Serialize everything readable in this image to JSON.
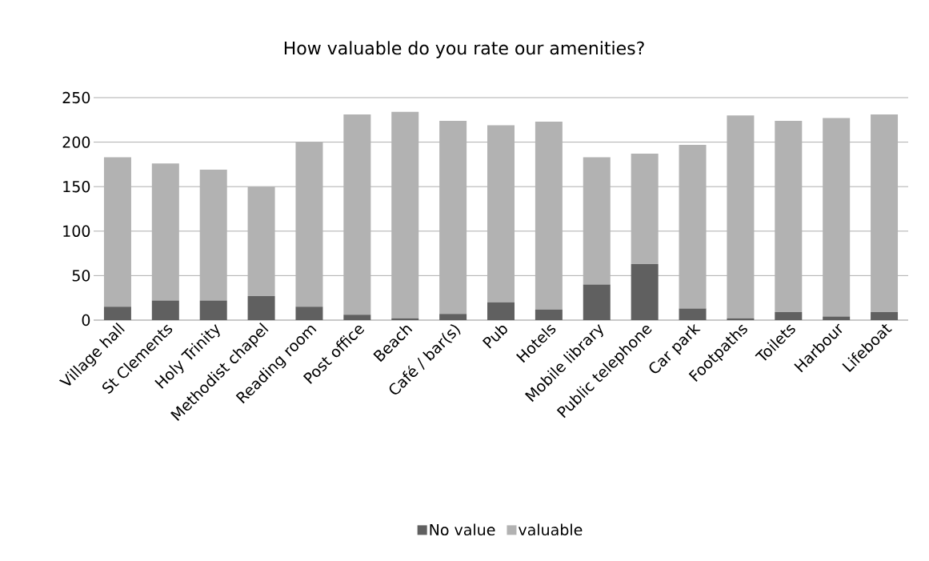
{
  "chart_data": {
    "type": "bar",
    "title": "How valuable do you rate our amenities?",
    "categories": [
      "Village hall",
      "St Clements",
      "Holy Trinity",
      "Methodist chapel",
      "Reading room",
      "Post office",
      "Beach",
      "Café / bar(s)",
      "Pub",
      "Hotels",
      "Mobile library",
      "Public telephone",
      "Car park",
      "Footpaths",
      "Toilets",
      "Harbour",
      "Lifeboat"
    ],
    "series": [
      {
        "name": "No value",
        "color": "#606060",
        "values": [
          15,
          22,
          22,
          27,
          15,
          6,
          2,
          7,
          20,
          12,
          40,
          63,
          13,
          2,
          9,
          4,
          9
        ]
      },
      {
        "name": "valuable",
        "color": "#b2b2b2",
        "values": [
          168,
          154,
          147,
          123,
          185,
          225,
          232,
          217,
          199,
          211,
          143,
          124,
          184,
          228,
          215,
          223,
          222
        ]
      }
    ],
    "stacked": true,
    "ylim": [
      0,
      250
    ],
    "yticks": [
      0,
      50,
      100,
      150,
      200,
      250
    ],
    "grid": "y",
    "legend": "bottom"
  }
}
